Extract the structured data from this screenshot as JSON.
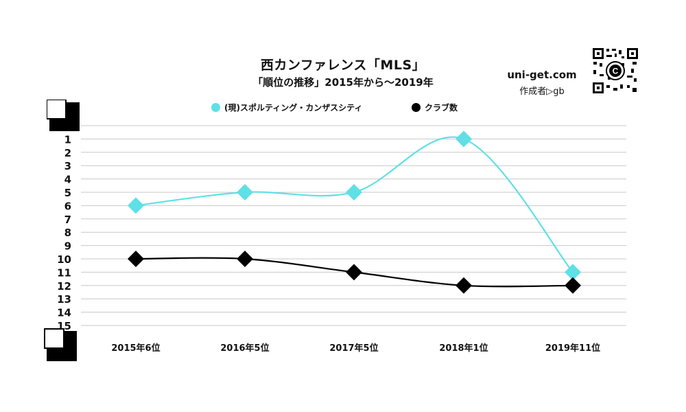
{
  "header": {
    "title": "西カンファレンス「MLS」",
    "subtitle": "「順位の推移」2015年から～2019年",
    "site": "uni-get.com",
    "author": "作成者▷gb"
  },
  "colors": {
    "team": "#5ee0e6",
    "clubs": "#000000",
    "grid": "#c8c8c8"
  },
  "chart_data": {
    "type": "line",
    "categories": [
      "2015年6位",
      "2016年5位",
      "2017年5位",
      "2018年1位",
      "2019年11位"
    ],
    "y_ticks": [
      "1",
      "2",
      "3",
      "4",
      "5",
      "6",
      "7",
      "8",
      "9",
      "10",
      "11",
      "12",
      "13",
      "14",
      "15"
    ],
    "ylim": [
      15,
      0
    ],
    "y_inverted": true,
    "grid": true,
    "legend_position": "top",
    "series": [
      {
        "name": "(現)スポルティング・カンザスシティ",
        "values": [
          6,
          5,
          5,
          1,
          11
        ],
        "color": "#5ee0e6",
        "marker": "diamond"
      },
      {
        "name": "クラブ数",
        "values": [
          10,
          10,
          11,
          12,
          12
        ],
        "color": "#000000",
        "marker": "diamond"
      }
    ]
  }
}
